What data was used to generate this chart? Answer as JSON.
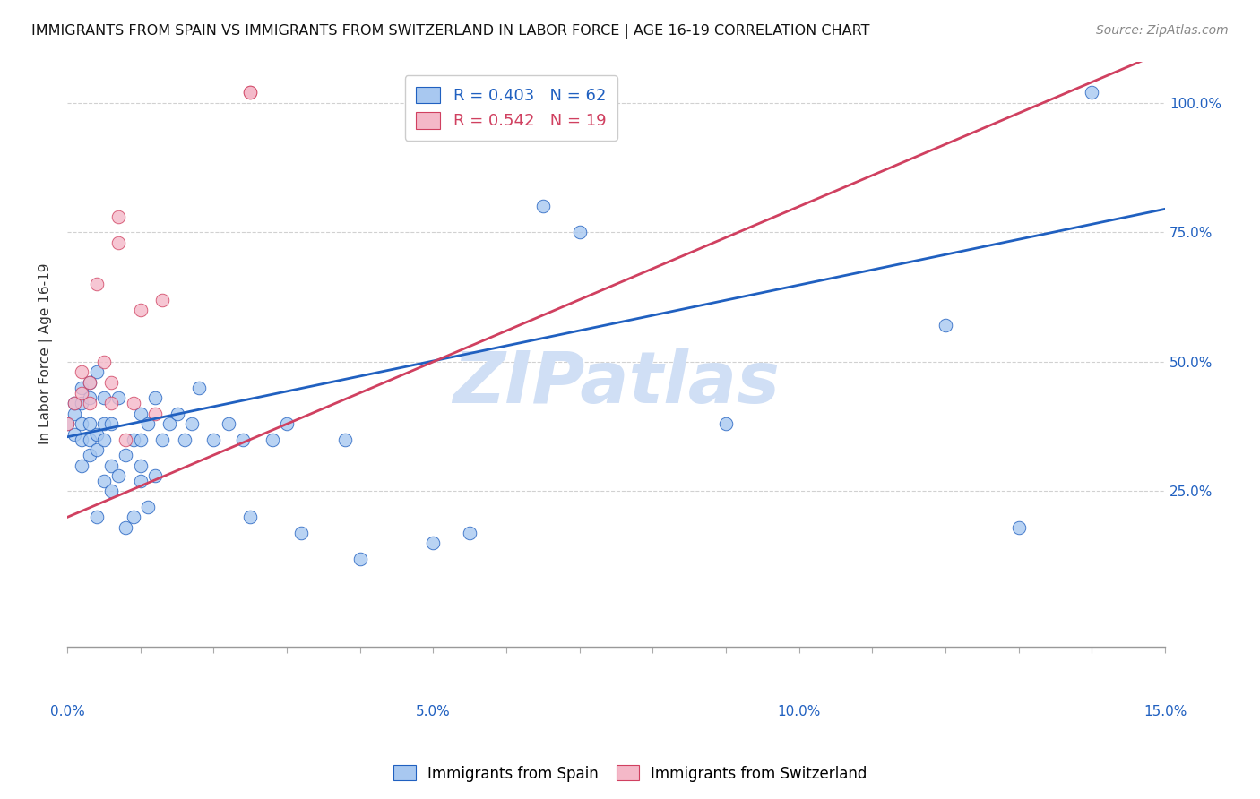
{
  "title": "IMMIGRANTS FROM SPAIN VS IMMIGRANTS FROM SWITZERLAND IN LABOR FORCE | AGE 16-19 CORRELATION CHART",
  "source": "Source: ZipAtlas.com",
  "ylabel": "In Labor Force | Age 16-19",
  "legend_label_blue": "Immigrants from Spain",
  "legend_label_pink": "Immigrants from Switzerland",
  "R_blue": 0.403,
  "N_blue": 62,
  "R_pink": 0.542,
  "N_pink": 19,
  "xlim": [
    0.0,
    0.15
  ],
  "ylim": [
    -0.05,
    1.08
  ],
  "xtick_labels": [
    "0.0%",
    "",
    "",
    "",
    "",
    "5.0%",
    "",
    "",
    "",
    "",
    "10.0%",
    "",
    "",
    "",
    "",
    "15.0%"
  ],
  "xtick_values": [
    0.0,
    0.01,
    0.02,
    0.03,
    0.04,
    0.05,
    0.06,
    0.07,
    0.08,
    0.09,
    0.1,
    0.11,
    0.12,
    0.13,
    0.14,
    0.15
  ],
  "xtick_display_labels": [
    "0.0%",
    "5.0%",
    "10.0%",
    "15.0%"
  ],
  "xtick_display_values": [
    0.0,
    0.05,
    0.1,
    0.15
  ],
  "ytick_labels": [
    "25.0%",
    "50.0%",
    "75.0%",
    "100.0%"
  ],
  "ytick_values": [
    0.25,
    0.5,
    0.75,
    1.0
  ],
  "color_blue": "#a8c8f0",
  "color_pink": "#f4b8c8",
  "line_color_blue": "#2060c0",
  "line_color_pink": "#d04060",
  "tick_color_blue": "#2060c0",
  "watermark_text": "ZIPatlas",
  "watermark_color": "#d0dff5",
  "blue_points_x": [
    0.0,
    0.001,
    0.001,
    0.001,
    0.002,
    0.002,
    0.002,
    0.002,
    0.002,
    0.003,
    0.003,
    0.003,
    0.003,
    0.003,
    0.004,
    0.004,
    0.004,
    0.004,
    0.005,
    0.005,
    0.005,
    0.005,
    0.006,
    0.006,
    0.006,
    0.007,
    0.007,
    0.008,
    0.008,
    0.009,
    0.009,
    0.01,
    0.01,
    0.01,
    0.01,
    0.011,
    0.011,
    0.012,
    0.012,
    0.013,
    0.014,
    0.015,
    0.016,
    0.017,
    0.018,
    0.02,
    0.022,
    0.024,
    0.025,
    0.028,
    0.03,
    0.032,
    0.038,
    0.04,
    0.05,
    0.055,
    0.065,
    0.07,
    0.09,
    0.12,
    0.13,
    0.14
  ],
  "blue_points_y": [
    0.38,
    0.36,
    0.4,
    0.42,
    0.3,
    0.35,
    0.38,
    0.42,
    0.45,
    0.32,
    0.35,
    0.38,
    0.43,
    0.46,
    0.2,
    0.33,
    0.36,
    0.48,
    0.27,
    0.35,
    0.38,
    0.43,
    0.25,
    0.3,
    0.38,
    0.28,
    0.43,
    0.18,
    0.32,
    0.2,
    0.35,
    0.27,
    0.3,
    0.35,
    0.4,
    0.22,
    0.38,
    0.28,
    0.43,
    0.35,
    0.38,
    0.4,
    0.35,
    0.38,
    0.45,
    0.35,
    0.38,
    0.35,
    0.2,
    0.35,
    0.38,
    0.17,
    0.35,
    0.12,
    0.15,
    0.17,
    0.8,
    0.75,
    0.38,
    0.57,
    0.18,
    1.02
  ],
  "pink_points_x": [
    0.0,
    0.001,
    0.002,
    0.002,
    0.003,
    0.003,
    0.004,
    0.005,
    0.006,
    0.006,
    0.007,
    0.007,
    0.008,
    0.009,
    0.01,
    0.012,
    0.013,
    0.025,
    0.025
  ],
  "pink_points_y": [
    0.38,
    0.42,
    0.44,
    0.48,
    0.42,
    0.46,
    0.65,
    0.5,
    0.42,
    0.46,
    0.73,
    0.78,
    0.35,
    0.42,
    0.6,
    0.4,
    0.62,
    1.02,
    1.02
  ],
  "blue_line_x0": 0.0,
  "blue_line_x1": 0.15,
  "blue_line_y0": 0.355,
  "blue_line_y1": 0.795,
  "pink_line_x0": 0.0,
  "pink_line_x1": 0.15,
  "pink_line_y0": 0.2,
  "pink_line_y1": 1.1
}
